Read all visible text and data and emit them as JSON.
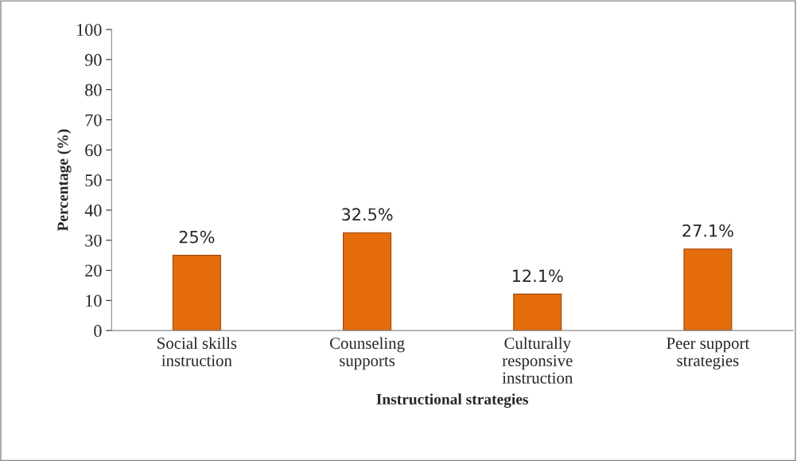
{
  "chart_data": {
    "type": "bar",
    "xlabel": "Instructional strategies",
    "ylabel": "Percentage (%)",
    "categories": [
      "Social skills\ninstruction",
      "Counseling\nsupports",
      "Culturally\nresponsive\ninstruction",
      "Peer support\nstrategies"
    ],
    "values": [
      25,
      32.5,
      12.1,
      27.1
    ],
    "color": "#e46c0a",
    "value_labels": [
      "25%",
      "32.5%",
      "12.1%",
      "27.1%"
    ],
    "ylim": [
      0,
      100
    ],
    "yticks": [
      0,
      10,
      20,
      30,
      40,
      50,
      60,
      70,
      80,
      90,
      100
    ],
    "grid": false,
    "legend": false
  }
}
